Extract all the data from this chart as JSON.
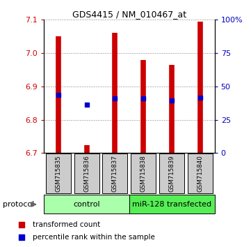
{
  "title": "GDS4415 / NM_010467_at",
  "samples": [
    "GSM715835",
    "GSM715836",
    "GSM715837",
    "GSM715838",
    "GSM715839",
    "GSM715840"
  ],
  "bar_bottoms": [
    6.7,
    6.7,
    6.7,
    6.7,
    6.7,
    6.7
  ],
  "bar_tops": [
    7.05,
    6.725,
    7.06,
    6.98,
    6.965,
    7.095
  ],
  "blue_dots": [
    6.875,
    6.845,
    6.865,
    6.865,
    6.858,
    6.867
  ],
  "ylim": [
    6.7,
    7.1
  ],
  "yticks_left": [
    6.7,
    6.8,
    6.9,
    7.0,
    7.1
  ],
  "yticks_right": [
    0,
    25,
    50,
    75,
    100
  ],
  "bar_color": "#cc0000",
  "dot_color": "#0000cc",
  "tick_label_color_left": "#cc0000",
  "tick_label_color_right": "#0000bb",
  "group_labels": [
    "control",
    "miR-128 transfected"
  ],
  "group_colors_light": [
    "#aaffaa",
    "#55ee55"
  ],
  "protocol_label": "protocol",
  "legend_items": [
    "transformed count",
    "percentile rank within the sample"
  ],
  "legend_colors": [
    "#cc0000",
    "#0000cc"
  ],
  "gsm_bg_color": "#cccccc",
  "spine_color": "#000000"
}
